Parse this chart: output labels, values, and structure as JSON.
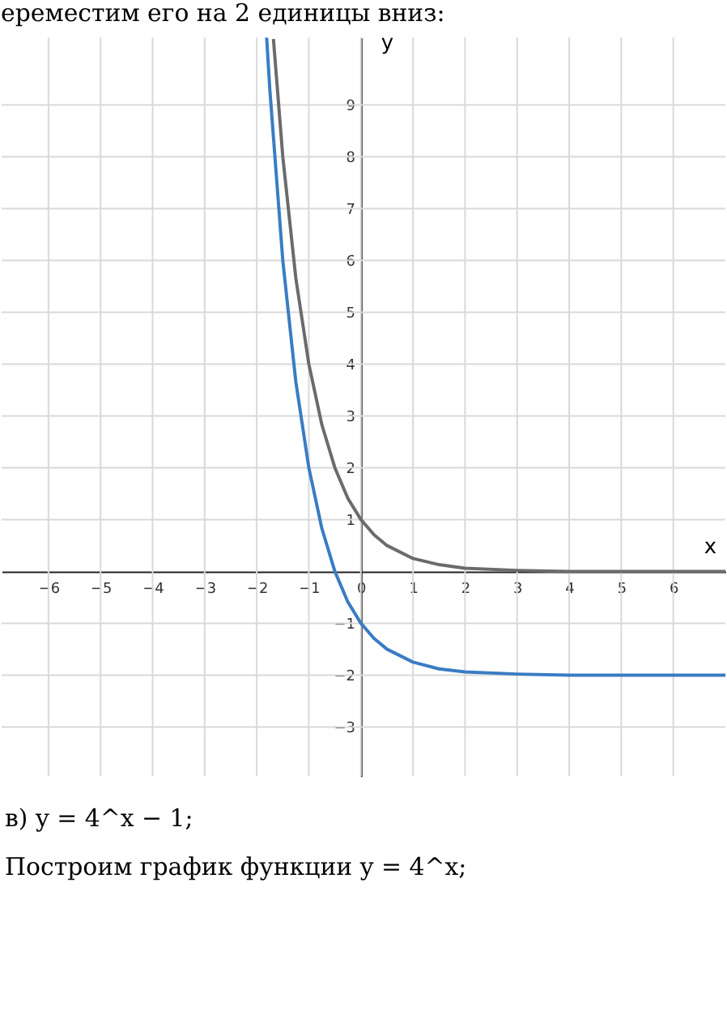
{
  "chart_data": {
    "type": "line",
    "title": "ереместим его на 2 единицы вниз:",
    "xlabel": "x",
    "ylabel": "y",
    "xlim": [
      -6.9,
      7
    ],
    "ylim": [
      -3.95,
      10.3
    ],
    "xticks": [
      -6,
      -5,
      -4,
      -3,
      -2,
      -1,
      0,
      1,
      2,
      3,
      4,
      5,
      6
    ],
    "yticks": [
      -3,
      -2,
      -1,
      1,
      2,
      3,
      4,
      5,
      6,
      7,
      8,
      9
    ],
    "grid": true,
    "marker": "none",
    "line_style": "solid",
    "series": [
      {
        "color": "#6b6b6b",
        "x": [
          -1.68,
          -1.5,
          -1.25,
          -1,
          -0.75,
          -0.5,
          -0.25,
          0,
          0.25,
          0.5,
          1,
          1.5,
          2,
          3,
          4,
          5,
          7
        ],
        "values": [
          10.27,
          8,
          5.66,
          4,
          2.83,
          2,
          1.41,
          1,
          0.71,
          0.5,
          0.25,
          0.13,
          0.06,
          0.02,
          0,
          0,
          0
        ]
      },
      {
        "color": "#3a7cc4",
        "x": [
          -1.81,
          -1.75,
          -1.5,
          -1.25,
          -1,
          -0.75,
          -0.5,
          -0.25,
          0,
          0.25,
          0.5,
          1,
          1.5,
          2,
          3,
          4,
          7
        ],
        "values": [
          10.3,
          9.31,
          6,
          3.66,
          2,
          0.83,
          0,
          -0.59,
          -1,
          -1.29,
          -1.5,
          -1.75,
          -1.88,
          -1.94,
          -1.98,
          -2,
          -2
        ]
      }
    ],
    "annotations": [
      "в) y = 4^x − 1;",
      "Построим график функции y = 4^x;"
    ]
  }
}
